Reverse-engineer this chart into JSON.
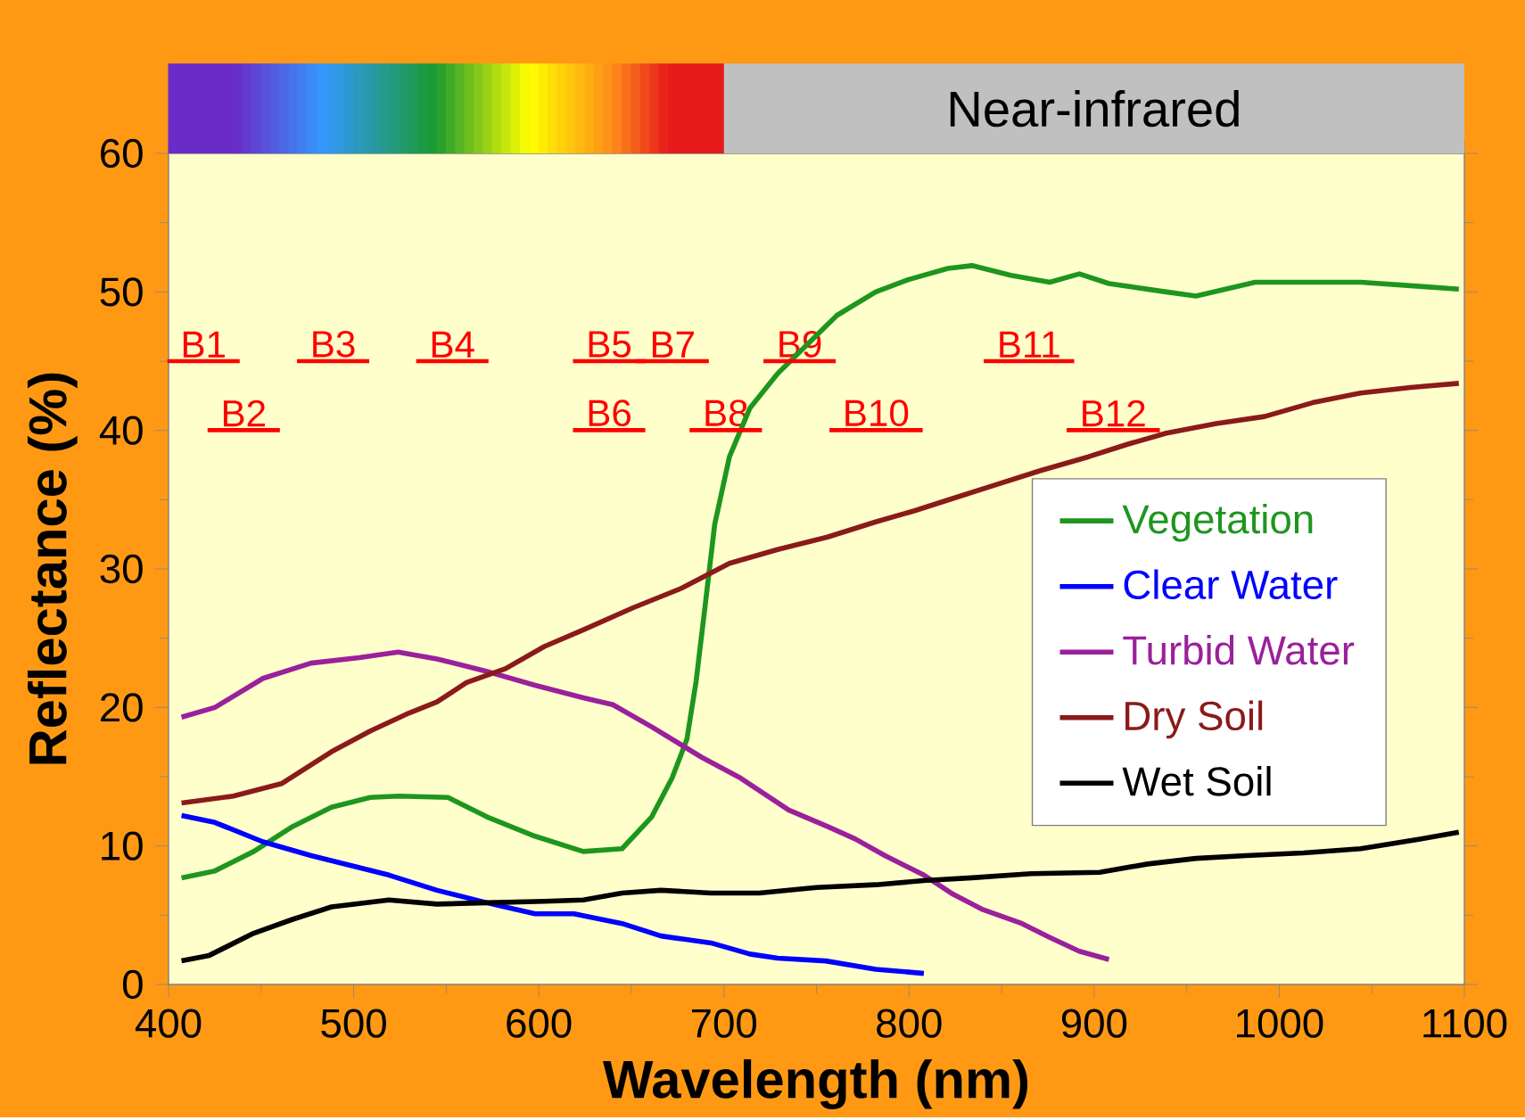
{
  "chart_data": {
    "type": "line",
    "xlabel": "Wavelength (nm)",
    "ylabel": "Reflectance (%)",
    "xlim": [
      400,
      1100
    ],
    "ylim": [
      0,
      60
    ],
    "xticks": [
      400,
      500,
      600,
      700,
      800,
      900,
      1000,
      1100
    ],
    "yticks": [
      0,
      10,
      20,
      30,
      40,
      50,
      60
    ],
    "legend": "right",
    "annotations": [
      "Near-infrared",
      "B1",
      "B2",
      "B3",
      "B4",
      "B5",
      "B6",
      "B7",
      "B8",
      "B9",
      "B10",
      "B11",
      "B12"
    ],
    "series": [
      {
        "name": "Vegetation",
        "color": "#1e961e",
        "x": [
          407,
          425,
          446,
          467,
          488,
          509,
          524,
          551,
          572,
          598,
          624,
          645,
          661,
          672,
          680,
          685,
          690,
          695,
          703,
          714,
          729,
          745,
          761,
          782,
          800,
          821,
          834,
          855,
          876,
          892,
          908,
          939,
          955,
          987,
          1013,
          1044,
          1076,
          1097
        ],
        "values": [
          7.7,
          8.2,
          9.6,
          11.4,
          12.8,
          13.5,
          13.6,
          13.5,
          12.1,
          10.7,
          9.6,
          9.8,
          12.1,
          14.9,
          17.7,
          21.9,
          27.5,
          33.2,
          38.1,
          41.6,
          44.1,
          46.2,
          48.3,
          50.0,
          50.9,
          51.7,
          51.9,
          51.2,
          50.7,
          51.3,
          50.6,
          50.0,
          49.7,
          50.7,
          50.7,
          50.7,
          50.4,
          50.2
        ]
      },
      {
        "name": "Clear Water",
        "color": "#0000ff",
        "x": [
          407,
          425,
          451,
          477,
          498,
          519,
          545,
          572,
          598,
          619,
          645,
          666,
          693,
          714,
          729,
          755,
          782,
          808
        ],
        "values": [
          12.2,
          11.7,
          10.3,
          9.3,
          8.6,
          7.9,
          6.8,
          5.9,
          5.1,
          5.1,
          4.4,
          3.5,
          3.0,
          2.2,
          1.9,
          1.7,
          1.1,
          0.8
        ]
      },
      {
        "name": "Turbid Water",
        "color": "#9b209b",
        "x": [
          407,
          425,
          451,
          477,
          503,
          524,
          545,
          572,
          598,
          624,
          640,
          661,
          688,
          709,
          735,
          756,
          771,
          787,
          808,
          824,
          840,
          861,
          876,
          892,
          908
        ],
        "values": [
          19.3,
          20.0,
          22.1,
          23.2,
          23.6,
          24.0,
          23.5,
          22.6,
          21.6,
          20.7,
          20.2,
          18.6,
          16.4,
          14.9,
          12.6,
          11.4,
          10.5,
          9.3,
          7.9,
          6.5,
          5.4,
          4.4,
          3.4,
          2.4,
          1.8
        ]
      },
      {
        "name": "Dry Soil",
        "color": "#8b1a1a",
        "x": [
          407,
          435,
          461,
          488,
          509,
          530,
          545,
          561,
          582,
          603,
          624,
          651,
          677,
          703,
          729,
          756,
          782,
          803,
          824,
          845,
          871,
          897,
          918,
          939,
          966,
          992,
          1018,
          1044,
          1071,
          1097
        ],
        "values": [
          13.1,
          13.6,
          14.5,
          16.8,
          18.3,
          19.6,
          20.4,
          21.8,
          22.8,
          24.4,
          25.6,
          27.2,
          28.6,
          30.4,
          31.4,
          32.3,
          33.4,
          34.2,
          35.1,
          36.0,
          37.1,
          38.1,
          39.0,
          39.8,
          40.5,
          41.0,
          42.0,
          42.7,
          43.1,
          43.4
        ]
      },
      {
        "name": "Wet Soil",
        "color": "#000000",
        "x": [
          407,
          422,
          446,
          467,
          488,
          519,
          545,
          572,
          603,
          624,
          645,
          666,
          693,
          719,
          750,
          782,
          808,
          834,
          866,
          903,
          929,
          955,
          982,
          1013,
          1044,
          1076,
          1097
        ],
        "values": [
          1.7,
          2.1,
          3.7,
          4.7,
          5.6,
          6.1,
          5.8,
          5.9,
          6.0,
          6.1,
          6.6,
          6.8,
          6.6,
          6.6,
          7.0,
          7.2,
          7.5,
          7.7,
          8.0,
          8.1,
          8.7,
          9.1,
          9.3,
          9.5,
          9.8,
          10.5,
          11.0
        ]
      }
    ]
  }
}
